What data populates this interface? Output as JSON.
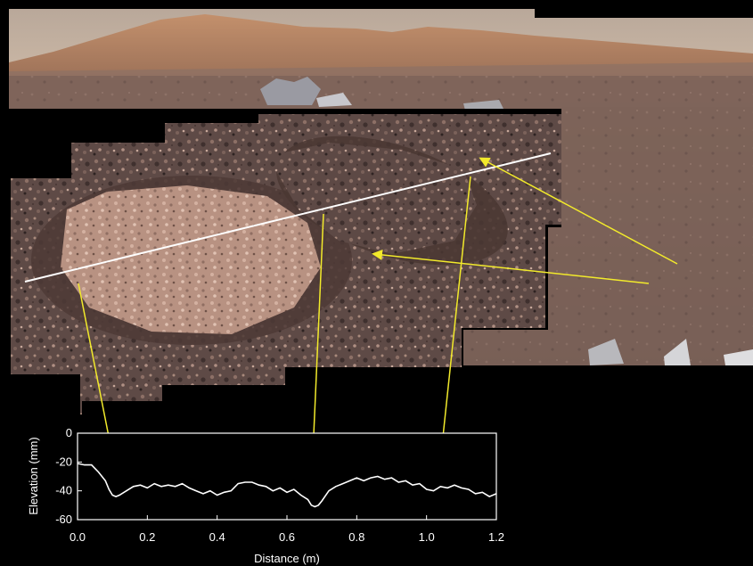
{
  "chart_data": {
    "type": "line",
    "xlabel": "Distance (m)",
    "ylabel": "Elevation (mm)",
    "xlim": [
      0.0,
      1.2
    ],
    "ylim": [
      -60,
      0
    ],
    "xticks": [
      "0.0",
      "0.2",
      "0.4",
      "0.6",
      "0.8",
      "1.0",
      "1.2"
    ],
    "yticks": [
      "0",
      "-20",
      "-40",
      "-60"
    ],
    "series": [
      {
        "x": [
          0.0,
          0.02,
          0.04,
          0.06,
          0.08,
          0.09,
          0.1,
          0.11,
          0.12,
          0.14,
          0.16,
          0.18,
          0.2,
          0.22,
          0.24,
          0.26,
          0.28,
          0.3,
          0.32,
          0.34,
          0.36,
          0.38,
          0.4,
          0.42,
          0.44,
          0.46,
          0.48,
          0.5,
          0.52,
          0.54,
          0.56,
          0.58,
          0.6,
          0.62,
          0.64,
          0.66,
          0.67,
          0.68,
          0.69,
          0.7,
          0.72,
          0.74,
          0.76,
          0.78,
          0.8,
          0.82,
          0.84,
          0.86,
          0.88,
          0.9,
          0.92,
          0.94,
          0.96,
          0.98,
          1.0,
          1.02,
          1.04,
          1.06,
          1.08,
          1.1,
          1.12,
          1.14,
          1.16,
          1.18,
          1.2
        ],
        "values": [
          -21,
          -22,
          -22,
          -27,
          -33,
          -39,
          -43,
          -44,
          -43,
          -40,
          -37,
          -36,
          -38,
          -35,
          -37,
          -36,
          -37,
          -35,
          -38,
          -40,
          -42,
          -40,
          -43,
          -41,
          -40,
          -35,
          -34,
          -34,
          -36,
          -37,
          -40,
          -38,
          -41,
          -39,
          -43,
          -46,
          -50,
          -51,
          -50,
          -47,
          -40,
          -37,
          -35,
          -33,
          -31,
          -33,
          -31,
          -30,
          -32,
          -31,
          -34,
          -33,
          -36,
          -35,
          -39,
          -40,
          -37,
          -38,
          -36,
          -38,
          -39,
          -42,
          -41,
          -44,
          -42
        ]
      }
    ]
  },
  "colors": {
    "arrow": "#f2ea2b",
    "transect_line": "#ffffff",
    "plot_line": "#ffffff"
  }
}
